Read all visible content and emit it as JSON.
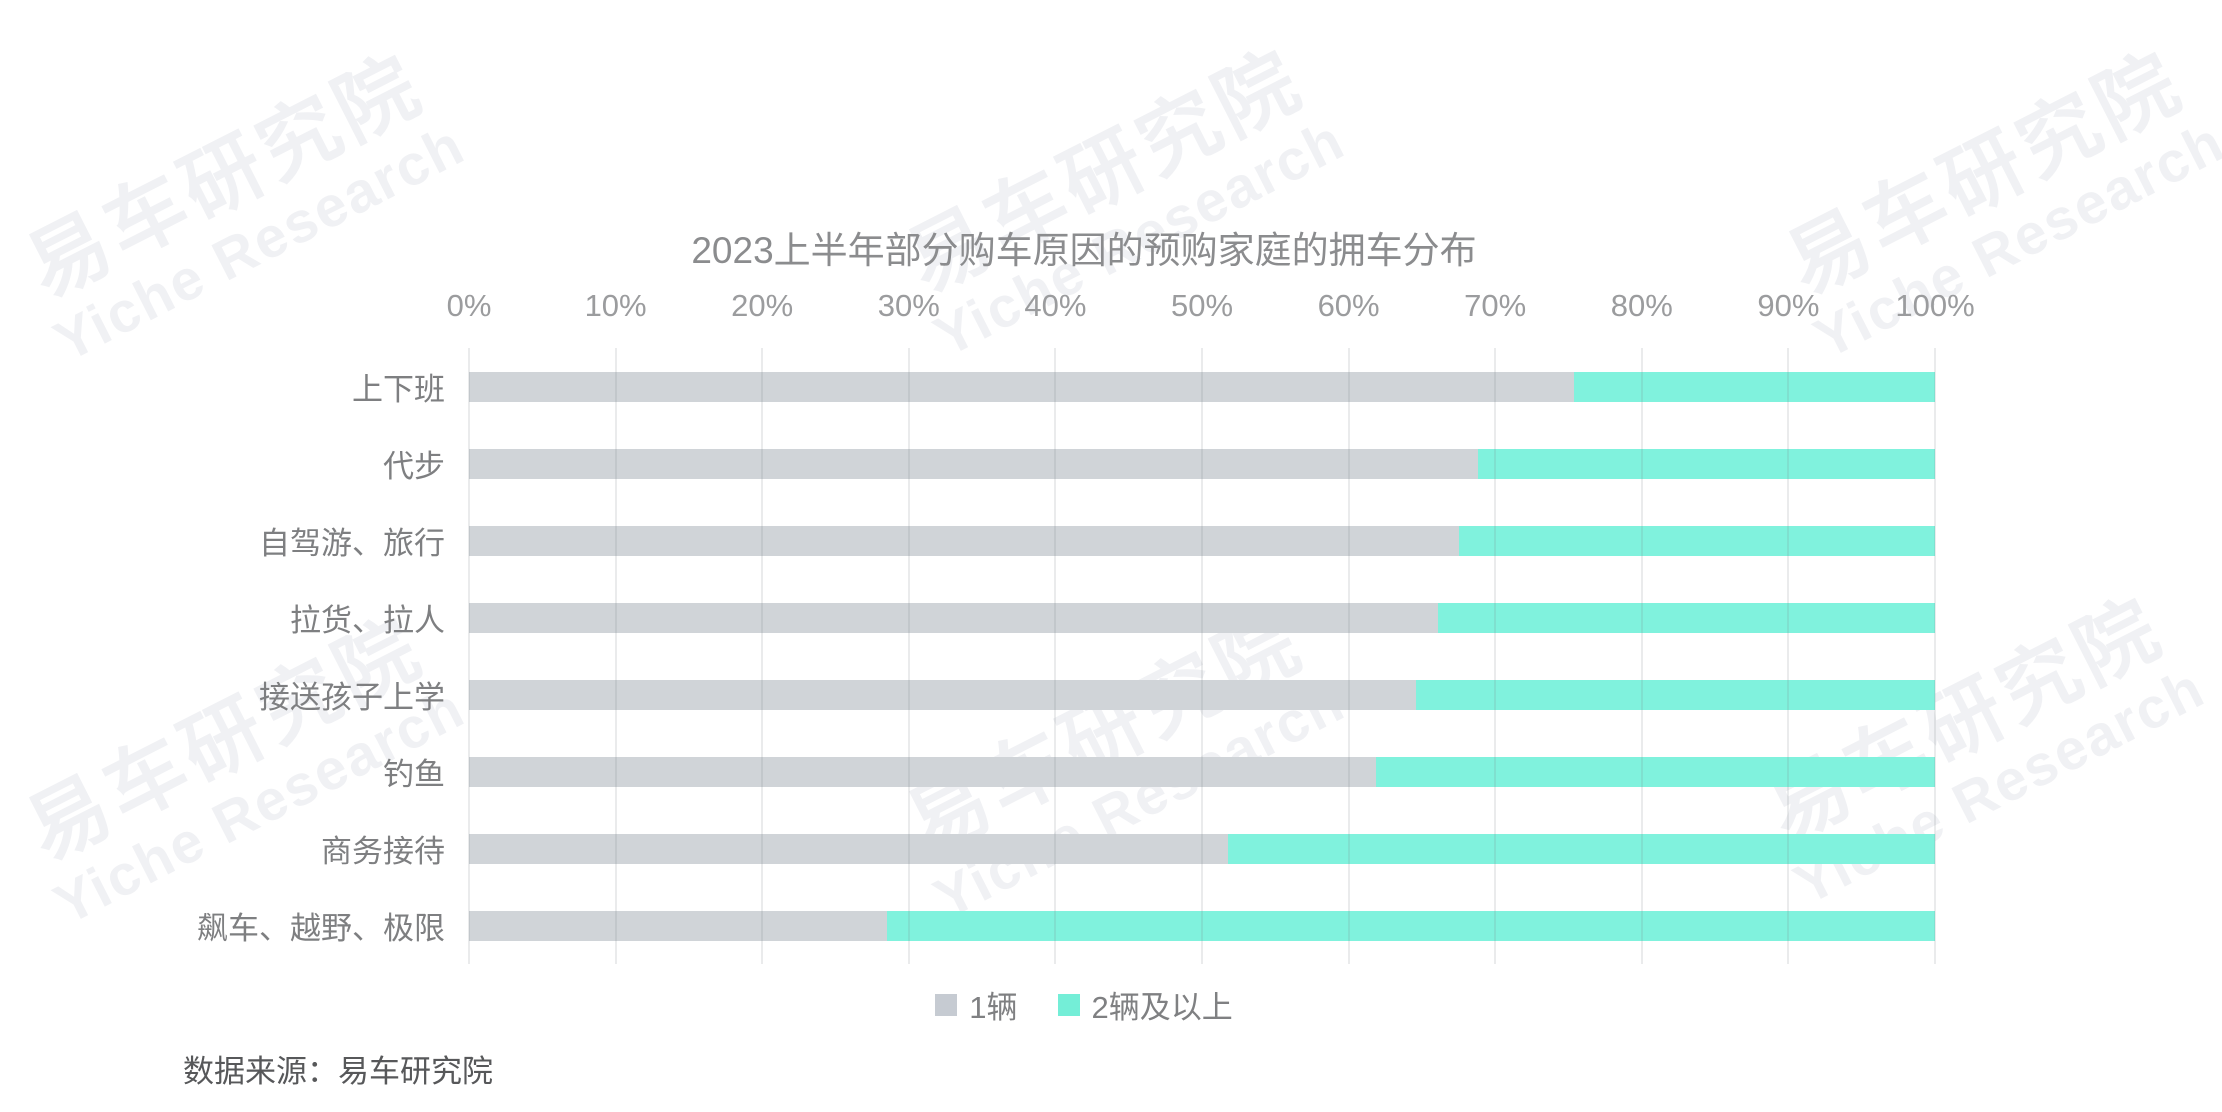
{
  "source": "数据来源：易车研究院",
  "watermark": {
    "line1": "易车研究院",
    "line2": "Yiche Research"
  },
  "colors": {
    "bar_one_car": "#D0D4D8",
    "bar_two_plus": "#80F2DD",
    "legend_one_car": "#C6CBD2",
    "legend_two_plus": "#74EED7",
    "gridline": "#E6E8EA",
    "title_text": "#8B8C8E",
    "axis_text": "#9B9C9E",
    "watermark_text": "#F0F1F4"
  },
  "chart_data": {
    "type": "bar",
    "orientation": "horizontal",
    "stacked": true,
    "title": "2023上半年部分购车原因的预购家庭的拥车分布",
    "xlabel": "",
    "ylabel": "",
    "xlim": [
      0,
      100
    ],
    "grid": true,
    "legend_position": "bottom",
    "x_ticks": [
      "0%",
      "10%",
      "20%",
      "30%",
      "40%",
      "50%",
      "60%",
      "70%",
      "80%",
      "90%",
      "100%"
    ],
    "categories": [
      "上下班",
      "代步",
      "自驾游、旅行",
      "拉货、拉人",
      "接送孩子上学",
      "钓鱼",
      "商务接待",
      "飙车、越野、极限"
    ],
    "series": [
      {
        "name": "1辆",
        "color": "#D0D4D8",
        "marker_color": "#C6CBD2",
        "values": [
          75.4,
          68.8,
          67.5,
          66.1,
          64.6,
          61.9,
          51.8,
          28.5
        ]
      },
      {
        "name": "2辆及以上",
        "color": "#80F2DD",
        "marker_color": "#74EED7",
        "values": [
          24.6,
          31.2,
          32.5,
          33.9,
          35.4,
          38.1,
          48.2,
          71.5
        ]
      }
    ]
  }
}
